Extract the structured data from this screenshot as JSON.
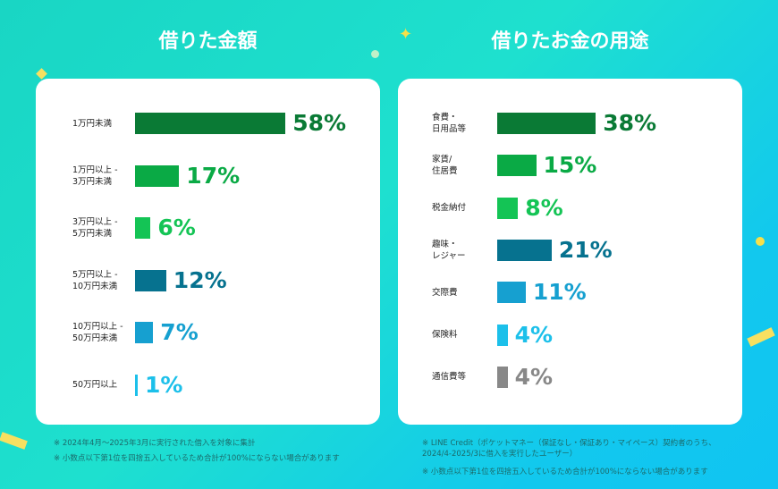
{
  "chart_data": [
    {
      "type": "bar",
      "orientation": "horizontal",
      "title": "借りた金額",
      "categories": [
        "1万円未満",
        "1万円以上 -\n3万円未満",
        "3万円以上 -\n5万円未満",
        "5万円以上 -\n10万円未満",
        "10万円以上 -\n50万円未満",
        "50万円以上"
      ],
      "values": [
        58,
        17,
        6,
        12,
        7,
        1
      ],
      "labels": [
        "58%",
        "17%",
        "6%",
        "12%",
        "7%",
        "1%"
      ],
      "colors": [
        "#0a7a35",
        "#0aaa45",
        "#14c455",
        "#06728f",
        "#16a0d0",
        "#1cc0ea"
      ],
      "notes": [
        "※ 2024年4月～2025年3月に実行された借入を対象に集計",
        "※ 小数点以下第1位を四捨五入しているため合計が100%にならない場合があります"
      ]
    },
    {
      "type": "bar",
      "orientation": "horizontal",
      "title": "借りたお金の用途",
      "categories": [
        "食費・\n日用品等",
        "家賃/\n住居費",
        "税金納付",
        "趣味・\nレジャー",
        "交際費",
        "保険料",
        "通信費等"
      ],
      "values": [
        38,
        15,
        8,
        21,
        11,
        4,
        4
      ],
      "labels": [
        "38%",
        "15%",
        "8%",
        "21%",
        "11%",
        "4%",
        "4%"
      ],
      "colors": [
        "#0a7a35",
        "#0aaa45",
        "#14c455",
        "#06728f",
        "#16a0d0",
        "#1cc0ea",
        "#888888"
      ],
      "notes": [
        "※ LINE Credit（ポケットマネー（保証なし・保証あり・マイペース）契約者のうち、2024/4-2025/3に借入を実行したユーザー）",
        "※ 小数点以下第1位を四捨五入しているため合計が100%にならない場合があります"
      ]
    }
  ]
}
